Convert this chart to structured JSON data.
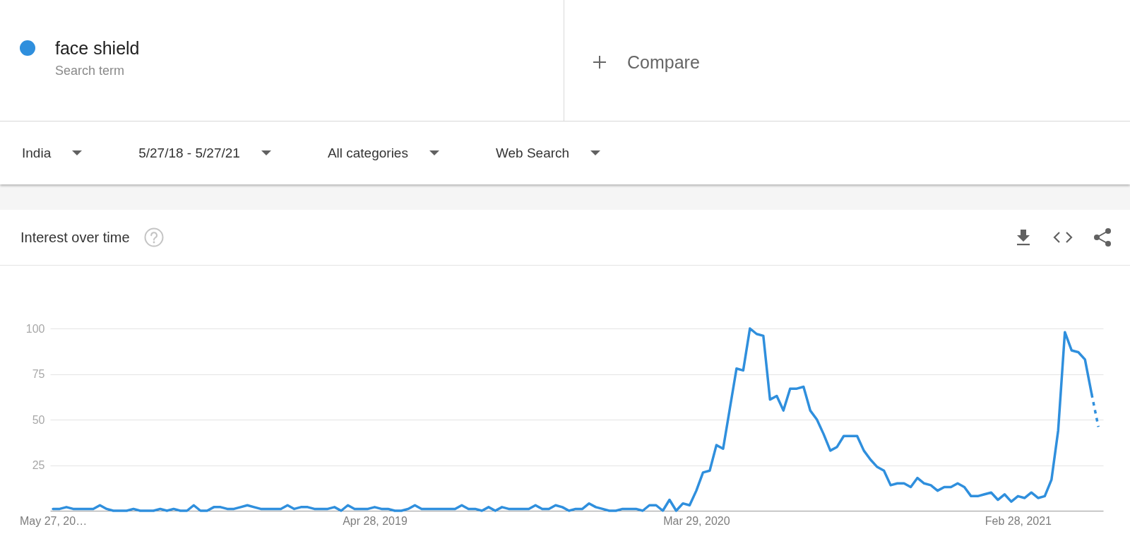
{
  "chart_data": {
    "type": "line",
    "title": "Interest over time",
    "annotations": [
      "Search term",
      "Compare",
      "India",
      "5/27/18 - 5/27/21",
      "All categories",
      "Web Search"
    ],
    "x": [
      "2018-05-27",
      "2018-06-03",
      "2018-06-10",
      "2018-06-17",
      "2018-06-24",
      "2018-07-01",
      "2018-07-08",
      "2018-07-15",
      "2018-07-22",
      "2018-07-29",
      "2018-08-05",
      "2018-08-12",
      "2018-08-19",
      "2018-08-26",
      "2018-09-02",
      "2018-09-09",
      "2018-09-16",
      "2018-09-23",
      "2018-09-30",
      "2018-10-07",
      "2018-10-14",
      "2018-10-21",
      "2018-10-28",
      "2018-11-04",
      "2018-11-11",
      "2018-11-18",
      "2018-11-25",
      "2018-12-02",
      "2018-12-09",
      "2018-12-16",
      "2018-12-23",
      "2018-12-30",
      "2019-01-06",
      "2019-01-13",
      "2019-01-20",
      "2019-01-27",
      "2019-02-03",
      "2019-02-10",
      "2019-02-17",
      "2019-02-24",
      "2019-03-03",
      "2019-03-10",
      "2019-03-17",
      "2019-03-24",
      "2019-03-31",
      "2019-04-07",
      "2019-04-14",
      "2019-04-21",
      "2019-04-28",
      "2019-05-05",
      "2019-05-12",
      "2019-05-19",
      "2019-05-26",
      "2019-06-02",
      "2019-06-09",
      "2019-06-16",
      "2019-06-23",
      "2019-06-30",
      "2019-07-07",
      "2019-07-14",
      "2019-07-21",
      "2019-07-28",
      "2019-08-04",
      "2019-08-11",
      "2019-08-18",
      "2019-08-25",
      "2019-09-01",
      "2019-09-08",
      "2019-09-15",
      "2019-09-22",
      "2019-09-29",
      "2019-10-06",
      "2019-10-13",
      "2019-10-20",
      "2019-10-27",
      "2019-11-03",
      "2019-11-10",
      "2019-11-17",
      "2019-11-24",
      "2019-12-01",
      "2019-12-08",
      "2019-12-15",
      "2019-12-22",
      "2019-12-29",
      "2020-01-05",
      "2020-01-12",
      "2020-01-19",
      "2020-01-26",
      "2020-02-02",
      "2020-02-09",
      "2020-02-16",
      "2020-02-23",
      "2020-03-01",
      "2020-03-08",
      "2020-03-15",
      "2020-03-22",
      "2020-03-29",
      "2020-04-05",
      "2020-04-12",
      "2020-04-19",
      "2020-04-26",
      "2020-05-03",
      "2020-05-10",
      "2020-05-17",
      "2020-05-24",
      "2020-05-31",
      "2020-06-07",
      "2020-06-14",
      "2020-06-21",
      "2020-06-28",
      "2020-07-05",
      "2020-07-12",
      "2020-07-19",
      "2020-07-26",
      "2020-08-02",
      "2020-08-09",
      "2020-08-16",
      "2020-08-23",
      "2020-08-30",
      "2020-09-06",
      "2020-09-13",
      "2020-09-20",
      "2020-09-27",
      "2020-10-04",
      "2020-10-11",
      "2020-10-18",
      "2020-10-25",
      "2020-11-01",
      "2020-11-08",
      "2020-11-15",
      "2020-11-22",
      "2020-11-29",
      "2020-12-06",
      "2020-12-13",
      "2020-12-20",
      "2020-12-27",
      "2021-01-03",
      "2021-01-10",
      "2021-01-17",
      "2021-01-24",
      "2021-01-31",
      "2021-02-07",
      "2021-02-14",
      "2021-02-21",
      "2021-02-28",
      "2021-03-07",
      "2021-03-14",
      "2021-03-21",
      "2021-03-28",
      "2021-04-04",
      "2021-04-11",
      "2021-04-18",
      "2021-04-25",
      "2021-05-02",
      "2021-05-09",
      "2021-05-16"
    ],
    "series": [
      {
        "name": "face shield",
        "color": "#2f8fdd",
        "values": [
          1,
          1,
          2,
          1,
          1,
          1,
          1,
          3,
          1,
          0,
          0,
          0,
          1,
          0,
          0,
          0,
          1,
          0,
          1,
          0,
          0,
          3,
          0,
          0,
          2,
          2,
          1,
          1,
          2,
          3,
          2,
          1,
          1,
          1,
          1,
          3,
          1,
          2,
          2,
          1,
          1,
          1,
          2,
          0,
          3,
          1,
          1,
          1,
          2,
          1,
          1,
          0,
          0,
          1,
          3,
          1,
          1,
          1,
          1,
          1,
          1,
          3,
          1,
          1,
          0,
          2,
          0,
          2,
          1,
          1,
          1,
          1,
          3,
          1,
          1,
          3,
          2,
          0,
          1,
          1,
          4,
          2,
          1,
          0,
          0,
          1,
          1,
          1,
          0,
          3,
          3,
          0,
          6,
          0,
          4,
          3,
          11,
          21,
          22,
          36,
          34,
          56,
          78,
          77,
          100,
          97,
          96,
          61,
          63,
          55,
          67,
          67,
          68,
          55,
          50,
          42,
          33,
          35,
          41,
          41,
          41,
          33,
          28,
          24,
          22,
          14,
          15,
          15,
          13,
          18,
          15,
          14,
          11,
          13,
          13,
          15,
          13,
          8,
          8,
          9,
          10,
          6,
          9,
          5,
          8,
          7,
          10,
          7,
          8,
          17,
          44,
          98,
          88,
          87,
          83,
          64
        ]
      },
      {
        "color": "#2f8fdd",
        "line_style": "dotted",
        "x": [
          "2021-05-16",
          "2021-05-23"
        ],
        "values": [
          64,
          46
        ]
      }
    ],
    "xlim": [
      "2018-05-24",
      "2021-05-28"
    ],
    "xticks": [
      {
        "value": "2018-05-27",
        "label": "May 27, 20…"
      },
      {
        "value": "2019-04-28",
        "label": "Apr 28, 2019"
      },
      {
        "value": "2020-03-29",
        "label": "Mar 29, 2020"
      },
      {
        "value": "2021-02-28",
        "label": "Feb 28, 2021"
      }
    ],
    "ylim": [
      0,
      100
    ],
    "yticks": [
      25,
      50,
      75,
      100
    ],
    "grid": "y",
    "legend": "top left"
  }
}
